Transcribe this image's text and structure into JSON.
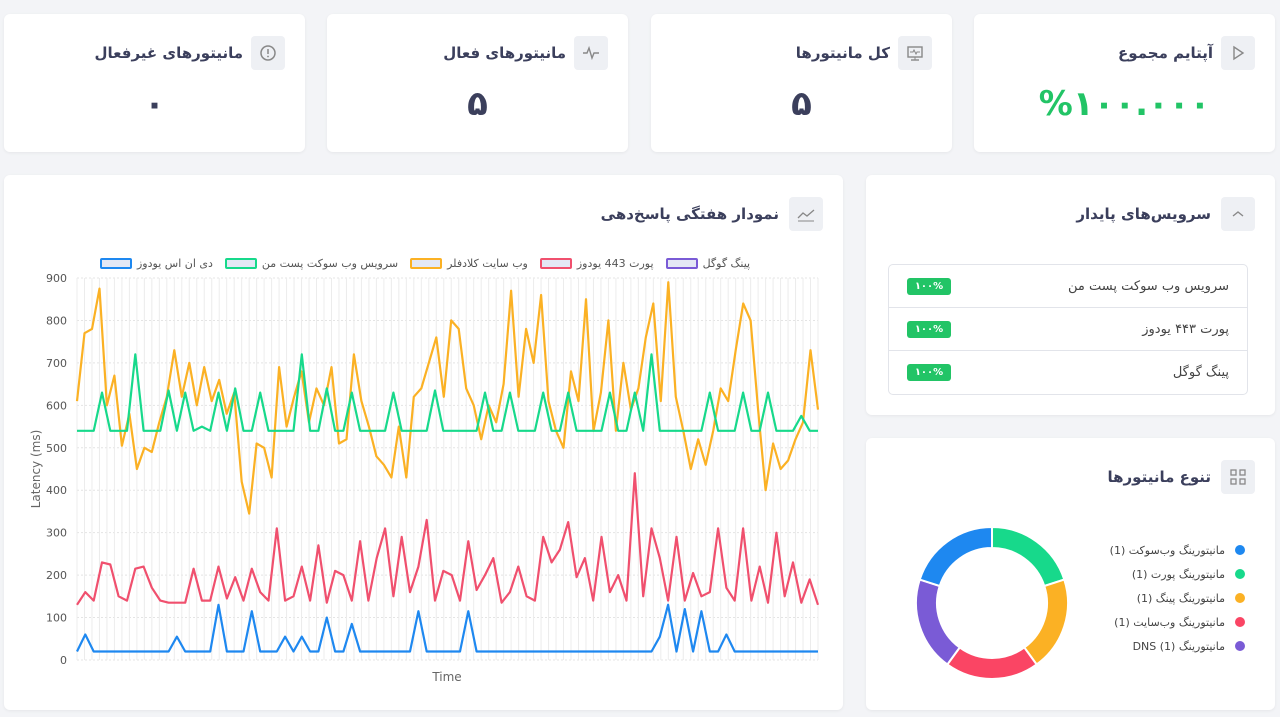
{
  "stats": [
    {
      "title": "مانیتورهای غیرفعال",
      "value": "۰",
      "icon": "alert-circle-icon"
    },
    {
      "title": "مانیتورهای فعال",
      "value": "۵",
      "icon": "activity-icon"
    },
    {
      "title": "کل مانیتورها",
      "value": "۵",
      "icon": "monitor-icon"
    },
    {
      "title": "آپتایم مجموع",
      "value": "%۱۰۰.۰۰۰",
      "icon": "play-icon"
    }
  ],
  "chart_card": {
    "title": "نمودار هفتگی پاسخ‌دهی",
    "icon": "line-chart-icon"
  },
  "services": {
    "title": "سرویس‌های پایدار",
    "icon": "chevron-up-icon",
    "items": [
      {
        "name": "سرویس وب سوکت پست من",
        "uptime": "۱۰۰%"
      },
      {
        "name": "پورت ۴۴۳ یودوز",
        "uptime": "۱۰۰%"
      },
      {
        "name": "پینگ گوگل",
        "uptime": "۱۰۰%"
      }
    ]
  },
  "types": {
    "title": "تنوع مانیتورها",
    "icon": "grid-icon",
    "items": [
      {
        "label": "مانیتورینگ وب‌سوکت (1)",
        "color": "#1e88f0",
        "value": 1
      },
      {
        "label": "مانیتورینگ پورت (1)",
        "color": "#17d98b",
        "value": 1
      },
      {
        "label": "مانیتورینگ پینگ (1)",
        "color": "#fbb124",
        "value": 1
      },
      {
        "label": "مانیتورینگ وب‌سایت (1)",
        "color": "#fa4564",
        "value": 1
      },
      {
        "label": "مانیتورینگ DNS (1)",
        "color": "#7a5bd6",
        "value": 1
      }
    ]
  },
  "chart_data": {
    "type": "line",
    "xlabel": "Time",
    "ylabel": "Latency (ms)",
    "ylim": [
      0,
      900
    ],
    "yticks": [
      0,
      100,
      200,
      300,
      400,
      500,
      600,
      700,
      800,
      900
    ],
    "series": [
      {
        "name": "پینگ گوگل",
        "color": "#7a5bd6",
        "values": []
      },
      {
        "name": "پورت 443 یودوز",
        "color": "#f0506e",
        "values": [
          130,
          160,
          140,
          230,
          225,
          150,
          140,
          215,
          220,
          170,
          140,
          135,
          135,
          135,
          215,
          140,
          140,
          220,
          145,
          195,
          140,
          215,
          160,
          140,
          310,
          140,
          150,
          220,
          140,
          270,
          135,
          210,
          200,
          140,
          280,
          140,
          240,
          310,
          150,
          290,
          160,
          220,
          330,
          140,
          210,
          200,
          140,
          280,
          165,
          200,
          240,
          135,
          160,
          220,
          150,
          140,
          290,
          230,
          260,
          325,
          195,
          240,
          140,
          290,
          160,
          200,
          140,
          440,
          150,
          310,
          240,
          140,
          290,
          140,
          205,
          150,
          160,
          310,
          170,
          140,
          310,
          140,
          220,
          135,
          300,
          150,
          230,
          135,
          190,
          130
        ]
      },
      {
        "name": "وب سایت کلادفلر",
        "color": "#fbb124",
        "values": [
          610,
          770,
          780,
          875,
          600,
          670,
          505,
          580,
          450,
          500,
          490,
          560,
          620,
          730,
          620,
          700,
          600,
          690,
          610,
          660,
          580,
          630,
          420,
          345,
          510,
          500,
          430,
          690,
          550,
          620,
          680,
          560,
          640,
          600,
          690,
          510,
          520,
          720,
          610,
          550,
          480,
          460,
          430,
          550,
          430,
          620,
          640,
          700,
          760,
          620,
          800,
          780,
          640,
          600,
          520,
          600,
          560,
          650,
          870,
          620,
          780,
          700,
          860,
          610,
          540,
          500,
          680,
          610,
          850,
          540,
          630,
          800,
          540,
          700,
          590,
          640,
          760,
          840,
          610,
          890,
          620,
          540,
          450,
          520,
          460,
          540,
          640,
          610,
          730,
          840,
          800,
          590,
          400,
          510,
          450,
          470,
          520,
          560,
          730,
          590
        ]
      },
      {
        "name": "سرویس وب سوکت پست من",
        "color": "#17d98b",
        "values": [
          540,
          540,
          540,
          630,
          540,
          540,
          540,
          720,
          540,
          540,
          540,
          635,
          540,
          630,
          540,
          550,
          540,
          630,
          540,
          640,
          540,
          540,
          630,
          540,
          540,
          540,
          540,
          720,
          540,
          540,
          640,
          540,
          540,
          630,
          540,
          540,
          540,
          540,
          630,
          540,
          540,
          540,
          540,
          635,
          540,
          540,
          540,
          540,
          540,
          630,
          540,
          540,
          630,
          540,
          540,
          540,
          630,
          540,
          540,
          630,
          540,
          540,
          540,
          540,
          630,
          540,
          540,
          630,
          540,
          720,
          540,
          540,
          540,
          540,
          540,
          540,
          630,
          540,
          540,
          540,
          630,
          540,
          540,
          630,
          540,
          540,
          540,
          575,
          540,
          540
        ]
      },
      {
        "name": "دی ان اس یودوز",
        "color": "#1e88f0",
        "values": [
          20,
          60,
          20,
          20,
          20,
          20,
          20,
          20,
          20,
          20,
          20,
          20,
          55,
          20,
          20,
          20,
          20,
          130,
          20,
          20,
          20,
          115,
          20,
          20,
          20,
          55,
          20,
          55,
          20,
          20,
          100,
          20,
          20,
          85,
          20,
          20,
          20,
          20,
          20,
          20,
          20,
          115,
          20,
          20,
          20,
          20,
          20,
          115,
          20,
          20,
          20,
          20,
          20,
          20,
          20,
          20,
          20,
          20,
          20,
          20,
          20,
          20,
          20,
          20,
          20,
          20,
          20,
          20,
          20,
          20,
          55,
          130,
          20,
          120,
          20,
          115,
          20,
          20,
          60,
          20,
          20,
          20,
          20,
          20,
          20,
          20,
          20,
          20,
          20,
          20
        ]
      }
    ]
  }
}
